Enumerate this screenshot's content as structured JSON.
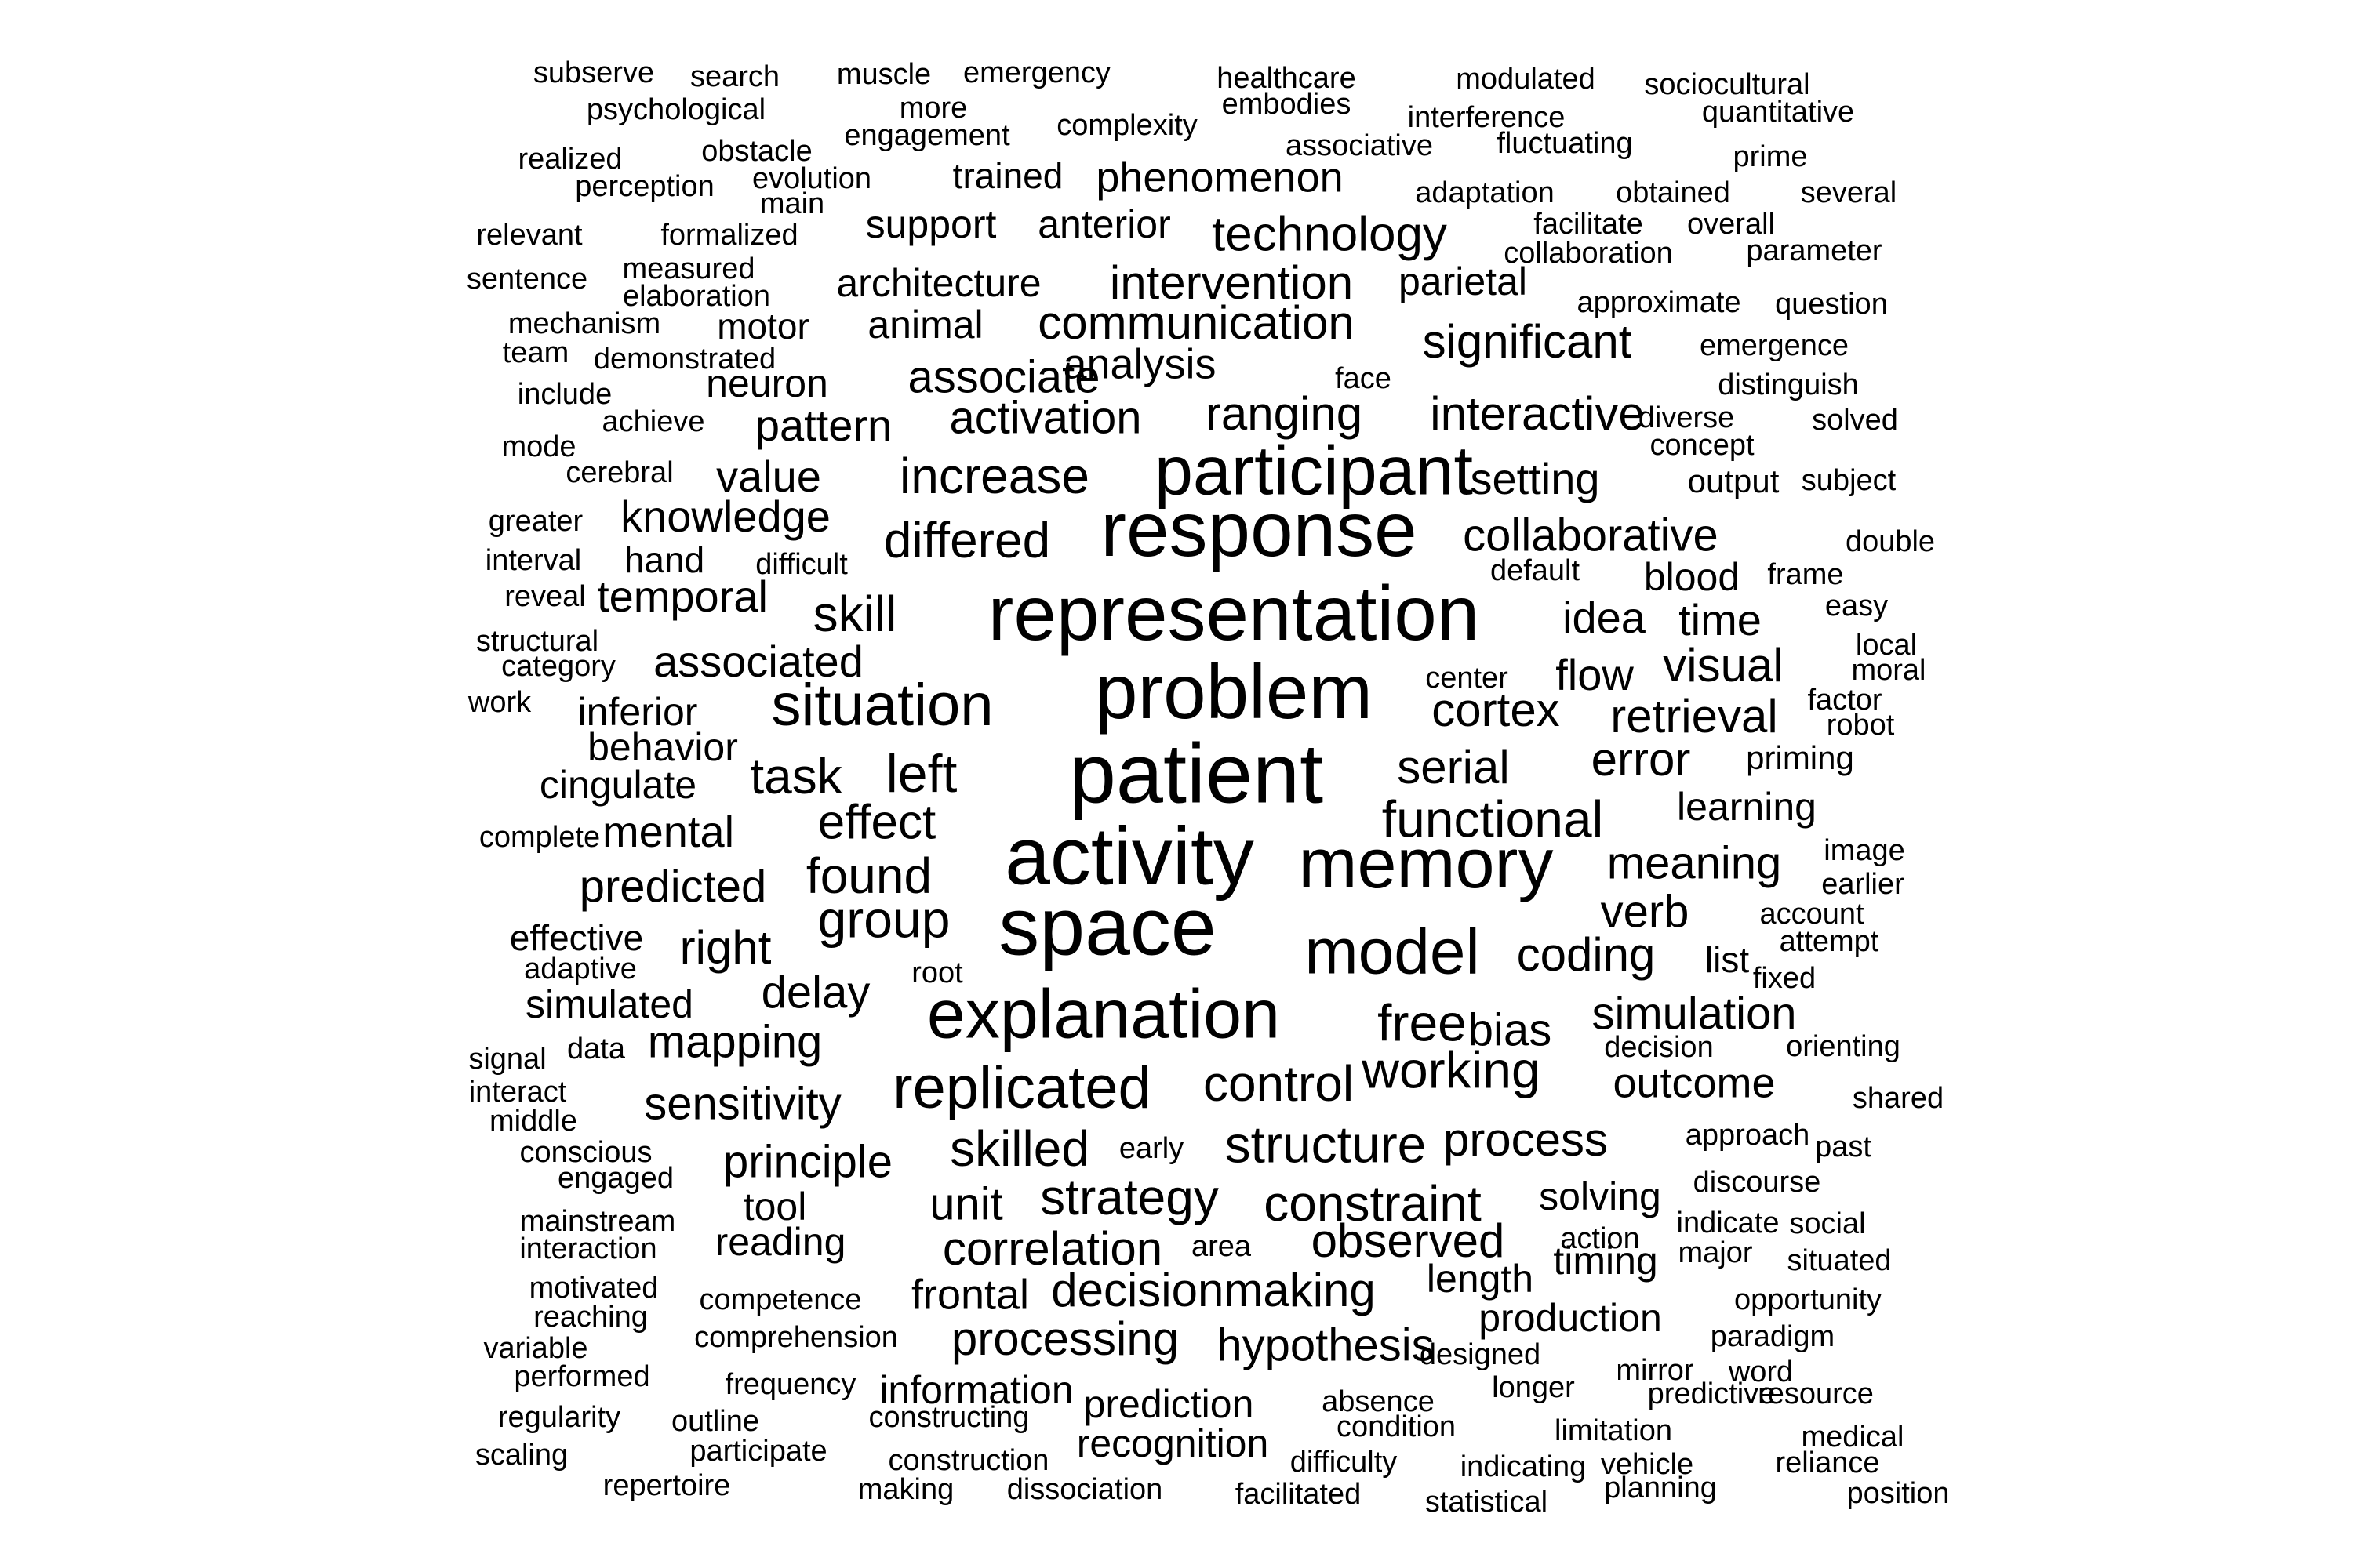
{
  "words": [
    {
      "text": "subserve",
      "weight": 1
    },
    {
      "text": "search",
      "weight": 1
    },
    {
      "text": "muscle",
      "weight": 1
    },
    {
      "text": "emergency",
      "weight": 1
    },
    {
      "text": "healthcare",
      "weight": 1
    },
    {
      "text": "modulated",
      "weight": 1
    },
    {
      "text": "sociocultural",
      "weight": 1
    },
    {
      "text": "psychological",
      "weight": 1
    },
    {
      "text": "more",
      "weight": 1
    },
    {
      "text": "embodies",
      "weight": 1
    },
    {
      "text": "interference",
      "weight": 1
    },
    {
      "text": "quantitative",
      "weight": 1
    },
    {
      "text": "engagement",
      "weight": 1
    },
    {
      "text": "complexity",
      "weight": 1
    },
    {
      "text": "associative",
      "weight": 1
    },
    {
      "text": "fluctuating",
      "weight": 1
    },
    {
      "text": "realized",
      "weight": 1
    },
    {
      "text": "obstacle",
      "weight": 1
    },
    {
      "text": "prime",
      "weight": 1
    },
    {
      "text": "evolution",
      "weight": 1
    },
    {
      "text": "trained",
      "weight": 2
    },
    {
      "text": "phenomenon",
      "weight": 2
    },
    {
      "text": "perception",
      "weight": 1
    },
    {
      "text": "main",
      "weight": 1
    },
    {
      "text": "adaptation",
      "weight": 1
    },
    {
      "text": "obtained",
      "weight": 1
    },
    {
      "text": "several",
      "weight": 1
    },
    {
      "text": "relevant",
      "weight": 1
    },
    {
      "text": "formalized",
      "weight": 1
    },
    {
      "text": "support",
      "weight": 2
    },
    {
      "text": "anterior",
      "weight": 2
    },
    {
      "text": "technology",
      "weight": 3
    },
    {
      "text": "facilitate",
      "weight": 1
    },
    {
      "text": "overall",
      "weight": 1
    },
    {
      "text": "collaboration",
      "weight": 1
    },
    {
      "text": "parameter",
      "weight": 1
    },
    {
      "text": "sentence",
      "weight": 1
    },
    {
      "text": "measured",
      "weight": 1
    },
    {
      "text": "elaboration",
      "weight": 1
    },
    {
      "text": "architecture",
      "weight": 2
    },
    {
      "text": "intervention",
      "weight": 3
    },
    {
      "text": "parietal",
      "weight": 2
    },
    {
      "text": "approximate",
      "weight": 1
    },
    {
      "text": "question",
      "weight": 1
    },
    {
      "text": "mechanism",
      "weight": 1
    },
    {
      "text": "motor",
      "weight": 2
    },
    {
      "text": "animal",
      "weight": 2
    },
    {
      "text": "communication",
      "weight": 3
    },
    {
      "text": "significant",
      "weight": 3
    },
    {
      "text": "team",
      "weight": 1
    },
    {
      "text": "demonstrated",
      "weight": 1
    },
    {
      "text": "emergence",
      "weight": 1
    },
    {
      "text": "analysis",
      "weight": 3
    },
    {
      "text": "associate",
      "weight": 3
    },
    {
      "text": "face",
      "weight": 1
    },
    {
      "text": "include",
      "weight": 1
    },
    {
      "text": "neuron",
      "weight": 2
    },
    {
      "text": "distinguish",
      "weight": 1
    },
    {
      "text": "ranging",
      "weight": 3
    },
    {
      "text": "interactive",
      "weight": 3
    },
    {
      "text": "achieve",
      "weight": 1
    },
    {
      "text": "pattern",
      "weight": 3
    },
    {
      "text": "activation",
      "weight": 3
    },
    {
      "text": "diverse",
      "weight": 1
    },
    {
      "text": "solved",
      "weight": 1
    },
    {
      "text": "mode",
      "weight": 1
    },
    {
      "text": "concept",
      "weight": 1
    },
    {
      "text": "participant",
      "weight": 5
    },
    {
      "text": "cerebral",
      "weight": 1
    },
    {
      "text": "value",
      "weight": 3
    },
    {
      "text": "increase",
      "weight": 3
    },
    {
      "text": "setting",
      "weight": 3
    },
    {
      "text": "output",
      "weight": 2
    },
    {
      "text": "subject",
      "weight": 1
    },
    {
      "text": "greater",
      "weight": 1
    },
    {
      "text": "knowledge",
      "weight": 3
    },
    {
      "text": "response",
      "weight": 5
    },
    {
      "text": "collaborative",
      "weight": 3
    },
    {
      "text": "double",
      "weight": 1
    },
    {
      "text": "interval",
      "weight": 1
    },
    {
      "text": "hand",
      "weight": 2
    },
    {
      "text": "difficult",
      "weight": 1
    },
    {
      "text": "differed",
      "weight": 3
    },
    {
      "text": "default",
      "weight": 1
    },
    {
      "text": "blood",
      "weight": 2
    },
    {
      "text": "frame",
      "weight": 1
    },
    {
      "text": "reveal",
      "weight": 1
    },
    {
      "text": "temporal",
      "weight": 3
    },
    {
      "text": "representation",
      "weight": 5
    },
    {
      "text": "skill",
      "weight": 3
    },
    {
      "text": "idea",
      "weight": 3
    },
    {
      "text": "time",
      "weight": 3
    },
    {
      "text": "easy",
      "weight": 1
    },
    {
      "text": "structural",
      "weight": 1
    },
    {
      "text": "category",
      "weight": 1
    },
    {
      "text": "associated",
      "weight": 3
    },
    {
      "text": "local",
      "weight": 1
    },
    {
      "text": "flow",
      "weight": 3
    },
    {
      "text": "visual",
      "weight": 3
    },
    {
      "text": "moral",
      "weight": 1
    },
    {
      "text": "center",
      "weight": 1
    },
    {
      "text": "work",
      "weight": 1
    },
    {
      "text": "inferior",
      "weight": 2
    },
    {
      "text": "problem",
      "weight": 5
    },
    {
      "text": "situation",
      "weight": 4
    },
    {
      "text": "cortex",
      "weight": 3
    },
    {
      "text": "retrieval",
      "weight": 3
    },
    {
      "text": "factor",
      "weight": 1
    },
    {
      "text": "robot",
      "weight": 1
    },
    {
      "text": "behavior",
      "weight": 2
    },
    {
      "text": "priming",
      "weight": 2
    },
    {
      "text": "cingulate",
      "weight": 2
    },
    {
      "text": "patient",
      "weight": 5
    },
    {
      "text": "task",
      "weight": 3
    },
    {
      "text": "left",
      "weight": 3
    },
    {
      "text": "serial",
      "weight": 3
    },
    {
      "text": "error",
      "weight": 3
    },
    {
      "text": "learning",
      "weight": 2
    },
    {
      "text": "complete",
      "weight": 1
    },
    {
      "text": "mental",
      "weight": 3
    },
    {
      "text": "effect",
      "weight": 3
    },
    {
      "text": "functional",
      "weight": 3
    },
    {
      "text": "image",
      "weight": 1
    },
    {
      "text": "earlier",
      "weight": 1
    },
    {
      "text": "activity",
      "weight": 5
    },
    {
      "text": "memory",
      "weight": 5
    },
    {
      "text": "meaning",
      "weight": 3
    },
    {
      "text": "predicted",
      "weight": 3
    },
    {
      "text": "found",
      "weight": 3
    },
    {
      "text": "verb",
      "weight": 3
    },
    {
      "text": "account",
      "weight": 1
    },
    {
      "text": "group",
      "weight": 3
    },
    {
      "text": "attempt",
      "weight": 1
    },
    {
      "text": "effective",
      "weight": 2
    },
    {
      "text": "right",
      "weight": 3
    },
    {
      "text": "space",
      "weight": 5
    },
    {
      "text": "model",
      "weight": 4
    },
    {
      "text": "coding",
      "weight": 3
    },
    {
      "text": "list",
      "weight": 2
    },
    {
      "text": "adaptive",
      "weight": 1
    },
    {
      "text": "root",
      "weight": 1
    },
    {
      "text": "fixed",
      "weight": 1
    },
    {
      "text": "simulated",
      "weight": 2
    },
    {
      "text": "delay",
      "weight": 3
    },
    {
      "text": "explanation",
      "weight": 5
    },
    {
      "text": "simulation",
      "weight": 3
    },
    {
      "text": "free",
      "weight": 3
    },
    {
      "text": "bias",
      "weight": 3
    },
    {
      "text": "signal",
      "weight": 1
    },
    {
      "text": "data",
      "weight": 1
    },
    {
      "text": "mapping",
      "weight": 3
    },
    {
      "text": "decision",
      "weight": 1
    },
    {
      "text": "orienting",
      "weight": 1
    },
    {
      "text": "interact",
      "weight": 1
    },
    {
      "text": "working",
      "weight": 3
    },
    {
      "text": "middle",
      "weight": 1
    },
    {
      "text": "sensitivity",
      "weight": 3
    },
    {
      "text": "replicated",
      "weight": 4
    },
    {
      "text": "control",
      "weight": 3
    },
    {
      "text": "outcome",
      "weight": 2
    },
    {
      "text": "shared",
      "weight": 1
    },
    {
      "text": "conscious",
      "weight": 1
    },
    {
      "text": "engaged",
      "weight": 1
    },
    {
      "text": "skilled",
      "weight": 3
    },
    {
      "text": "early",
      "weight": 1
    },
    {
      "text": "structure",
      "weight": 3
    },
    {
      "text": "process",
      "weight": 3
    },
    {
      "text": "approach",
      "weight": 1
    },
    {
      "text": "past",
      "weight": 1
    },
    {
      "text": "principle",
      "weight": 3
    },
    {
      "text": "discourse",
      "weight": 1
    },
    {
      "text": "tool",
      "weight": 2
    },
    {
      "text": "unit",
      "weight": 3
    },
    {
      "text": "strategy",
      "weight": 3
    },
    {
      "text": "constraint",
      "weight": 3
    },
    {
      "text": "solving",
      "weight": 2
    },
    {
      "text": "mainstream",
      "weight": 1
    },
    {
      "text": "indicate",
      "weight": 1
    },
    {
      "text": "social",
      "weight": 1
    },
    {
      "text": "interaction",
      "weight": 1
    },
    {
      "text": "reading",
      "weight": 2
    },
    {
      "text": "correlation",
      "weight": 3
    },
    {
      "text": "area",
      "weight": 1
    },
    {
      "text": "observed",
      "weight": 3
    },
    {
      "text": "action",
      "weight": 1
    },
    {
      "text": "major",
      "weight": 1
    },
    {
      "text": "situated",
      "weight": 1
    },
    {
      "text": "timing",
      "weight": 2
    },
    {
      "text": "motivated",
      "weight": 1
    },
    {
      "text": "length",
      "weight": 2
    },
    {
      "text": "competence",
      "weight": 1
    },
    {
      "text": "frontal",
      "weight": 2
    },
    {
      "text": "decisionmaking",
      "weight": 3
    },
    {
      "text": "opportunity",
      "weight": 1
    },
    {
      "text": "reaching",
      "weight": 1
    },
    {
      "text": "production",
      "weight": 2
    },
    {
      "text": "variable",
      "weight": 1
    },
    {
      "text": "comprehension",
      "weight": 1
    },
    {
      "text": "processing",
      "weight": 3
    },
    {
      "text": "hypothesis",
      "weight": 3
    },
    {
      "text": "paradigm",
      "weight": 1
    },
    {
      "text": "performed",
      "weight": 1
    },
    {
      "text": "designed",
      "weight": 1
    },
    {
      "text": "mirror",
      "weight": 1
    },
    {
      "text": "word",
      "weight": 1
    },
    {
      "text": "frequency",
      "weight": 1
    },
    {
      "text": "information",
      "weight": 2
    },
    {
      "text": "longer",
      "weight": 1
    },
    {
      "text": "predictive",
      "weight": 1
    },
    {
      "text": "resource",
      "weight": 1
    },
    {
      "text": "regularity",
      "weight": 1
    },
    {
      "text": "outline",
      "weight": 1
    },
    {
      "text": "constructing",
      "weight": 1
    },
    {
      "text": "prediction",
      "weight": 2
    },
    {
      "text": "absence",
      "weight": 1
    },
    {
      "text": "condition",
      "weight": 1
    },
    {
      "text": "limitation",
      "weight": 1
    },
    {
      "text": "medical",
      "weight": 1
    },
    {
      "text": "scaling",
      "weight": 1
    },
    {
      "text": "participate",
      "weight": 1
    },
    {
      "text": "recognition",
      "weight": 2
    },
    {
      "text": "difficulty",
      "weight": 1
    },
    {
      "text": "indicating",
      "weight": 1
    },
    {
      "text": "vehicle",
      "weight": 1
    },
    {
      "text": "reliance",
      "weight": 1
    },
    {
      "text": "construction",
      "weight": 1
    },
    {
      "text": "repertoire",
      "weight": 1
    },
    {
      "text": "making",
      "weight": 1
    },
    {
      "text": "dissociation",
      "weight": 1
    },
    {
      "text": "facilitated",
      "weight": 1
    },
    {
      "text": "statistical",
      "weight": 1
    },
    {
      "text": "planning",
      "weight": 1
    },
    {
      "text": "position",
      "weight": 1
    }
  ]
}
